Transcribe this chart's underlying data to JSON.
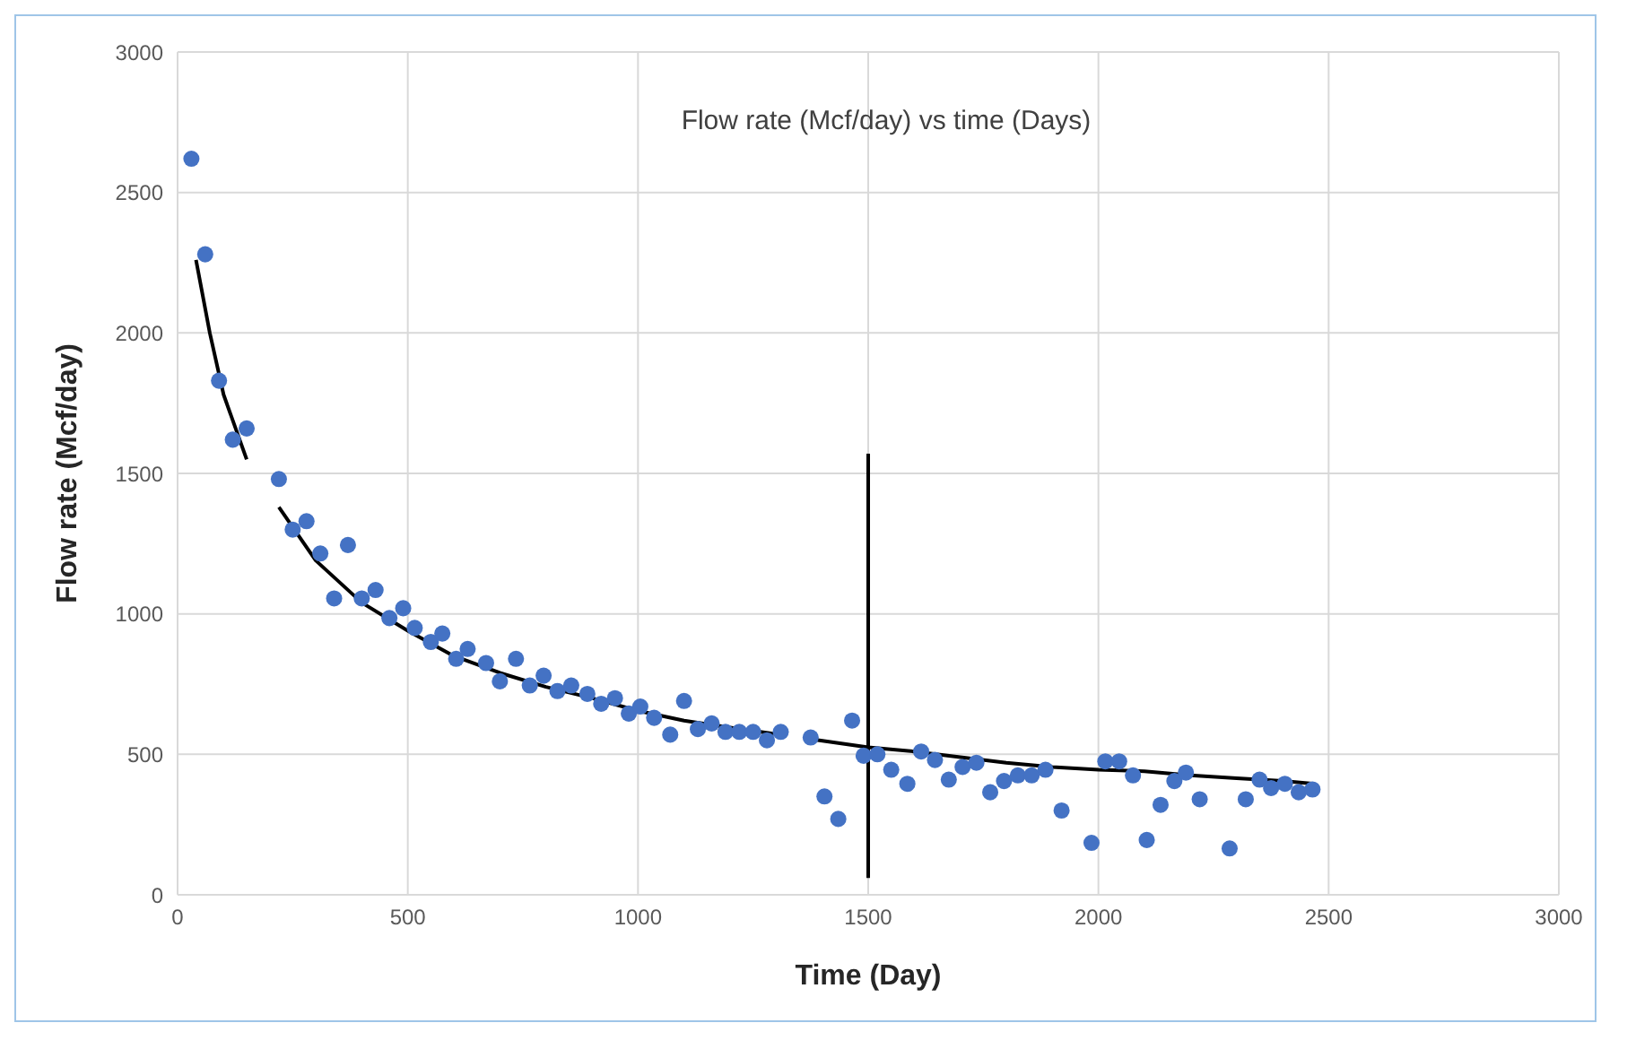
{
  "chart_data": {
    "type": "scatter",
    "title": "Flow rate (Mcf/day) vs time (Days)",
    "xlabel": "Time (Day)",
    "ylabel": "Flow rate (Mcf/day)",
    "xlim": [
      0,
      3000
    ],
    "xticks": [
      0,
      500,
      1000,
      1500,
      2000,
      2500,
      3000
    ],
    "ylim": [
      0,
      3000
    ],
    "yticks": [
      0,
      500,
      1000,
      1500,
      2000,
      2500,
      3000
    ],
    "grid": true,
    "legend": false,
    "series": [
      {
        "color": "#4472c4",
        "marker": "circle",
        "x": [
          30,
          60,
          90,
          120,
          150,
          220,
          250,
          280,
          310,
          340,
          370,
          400,
          430,
          460,
          490,
          515,
          550,
          575,
          605,
          630,
          670,
          700,
          735,
          765,
          795,
          825,
          855,
          890,
          920,
          950,
          980,
          1005,
          1035,
          1070,
          1100,
          1130,
          1160,
          1190,
          1220,
          1250,
          1280,
          1310,
          1375,
          1405,
          1435,
          1465,
          1490,
          1520,
          1550,
          1585,
          1615,
          1645,
          1675,
          1705,
          1735,
          1765,
          1795,
          1825,
          1855,
          1885,
          1920,
          1985,
          2015,
          2045,
          2075,
          2105,
          2135,
          2165,
          2190,
          2220,
          2285,
          2320,
          2350,
          2375,
          2405,
          2435,
          2465
        ],
        "values": [
          2620,
          2280,
          1830,
          1620,
          1660,
          1480,
          1300,
          1330,
          1215,
          1055,
          1245,
          1055,
          1085,
          985,
          1020,
          950,
          900,
          930,
          840,
          875,
          825,
          760,
          840,
          745,
          780,
          725,
          745,
          715,
          680,
          700,
          645,
          670,
          630,
          570,
          690,
          590,
          610,
          580,
          580,
          580,
          550,
          580,
          560,
          350,
          270,
          620,
          495,
          500,
          445,
          395,
          510,
          480,
          410,
          455,
          470,
          365,
          405,
          425,
          425,
          445,
          300,
          185,
          475,
          475,
          425,
          195,
          320,
          405,
          435,
          340,
          165,
          340,
          410,
          380,
          395,
          365,
          375
        ]
      },
      {
        "type": "line",
        "color": "#000000",
        "marker": "none",
        "x": [
          40,
          70,
          100,
          150
        ],
        "values": [
          2260,
          2000,
          1780,
          1550
        ]
      },
      {
        "type": "line",
        "color": "#000000",
        "marker": "none",
        "x": [
          220,
          300,
          400,
          500,
          600,
          700,
          800,
          900,
          1000,
          1100,
          1200,
          1310
        ],
        "values": [
          1380,
          1190,
          1040,
          940,
          850,
          790,
          740,
          700,
          655,
          620,
          595,
          570
        ]
      },
      {
        "type": "line",
        "color": "#000000",
        "marker": "none",
        "x": [
          1370,
          1500,
          1600,
          1700,
          1800,
          1900,
          2000,
          2100,
          2200,
          2300,
          2400,
          2470
        ],
        "values": [
          555,
          525,
          510,
          490,
          470,
          455,
          445,
          440,
          425,
          415,
          405,
          395
        ]
      },
      {
        "type": "line",
        "color": "#000000",
        "marker": "none",
        "x": [
          1500,
          1500
        ],
        "values": [
          60,
          1570
        ]
      }
    ]
  }
}
